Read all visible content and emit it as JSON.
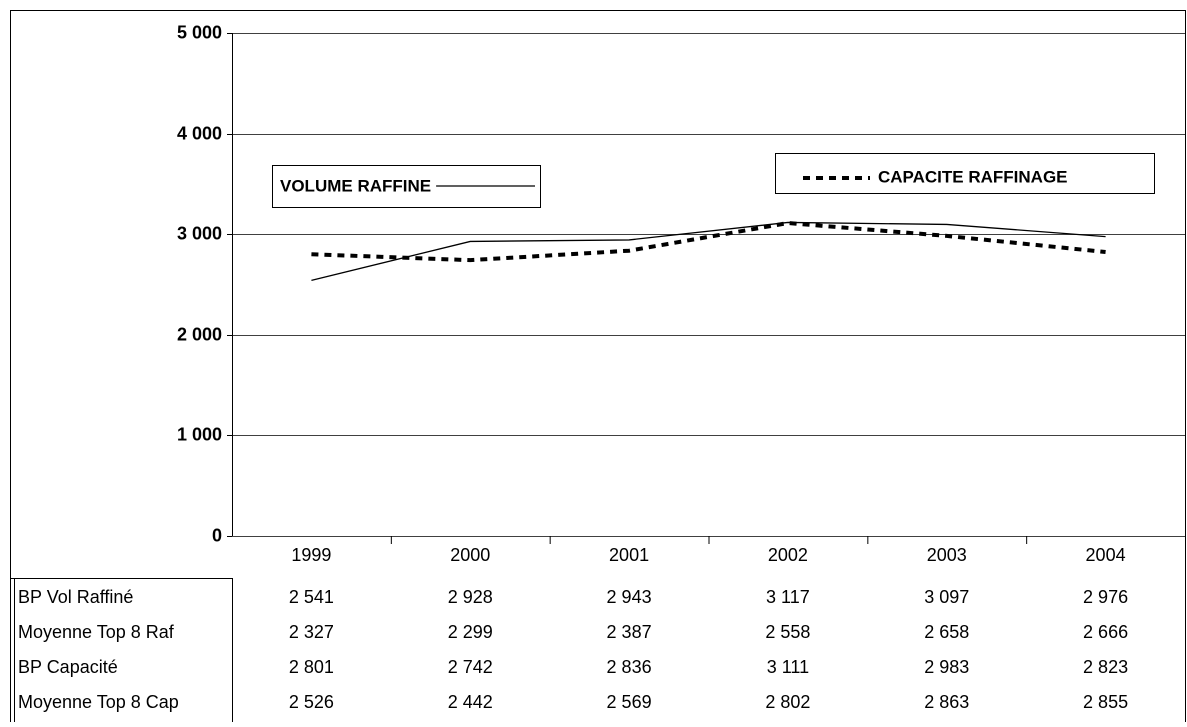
{
  "chart_data": {
    "type": "line",
    "categories": [
      "1999",
      "2000",
      "2001",
      "2002",
      "2003",
      "2004"
    ],
    "series": [
      {
        "name": "BP Vol Raffiné",
        "color": "#000000",
        "line_style": "solid",
        "values": [
          2541,
          2928,
          2943,
          3117,
          3097,
          2976
        ],
        "value_labels": [
          "2 541",
          "2 928",
          "2 943",
          "3 117",
          "3 097",
          "2 976"
        ]
      },
      {
        "name": "Moyenne Top 8 Raf",
        "color": "#000000",
        "line_style": "none",
        "values": [
          2327,
          2299,
          2387,
          2558,
          2658,
          2666
        ],
        "value_labels": [
          "2 327",
          "2 299",
          "2 387",
          "2 558",
          "2 658",
          "2 666"
        ]
      },
      {
        "name": "BP Capacité",
        "color": "#000000",
        "line_style": "dotted",
        "values": [
          2801,
          2742,
          2836,
          3111,
          2983,
          2823
        ],
        "value_labels": [
          "2 801",
          "2 742",
          "2 836",
          "3 111",
          "2 983",
          "2 823"
        ]
      },
      {
        "name": "Moyenne Top 8 Cap",
        "color": "#000000",
        "line_style": "none",
        "values": [
          2526,
          2442,
          2569,
          2802,
          2863,
          2855
        ],
        "value_labels": [
          "2 526",
          "2 442",
          "2 569",
          "2 802",
          "2 863",
          "2 855"
        ]
      }
    ],
    "annotations": [
      {
        "text": "VOLUME RAFFINE",
        "line_style": "solid"
      },
      {
        "text": "CAPACITE RAFFINAGE",
        "line_style": "dotted"
      }
    ],
    "ylim": [
      0,
      5000
    ],
    "yticks": [
      0,
      {
        "value": 1000,
        "label": "1 000"
      },
      {
        "value": 2000,
        "label": "2 000"
      },
      {
        "value": 3000,
        "label": "3 000"
      },
      {
        "value": 4000,
        "label": "4 000"
      },
      {
        "value": 5000,
        "label": "5 000"
      }
    ],
    "grid": true
  }
}
